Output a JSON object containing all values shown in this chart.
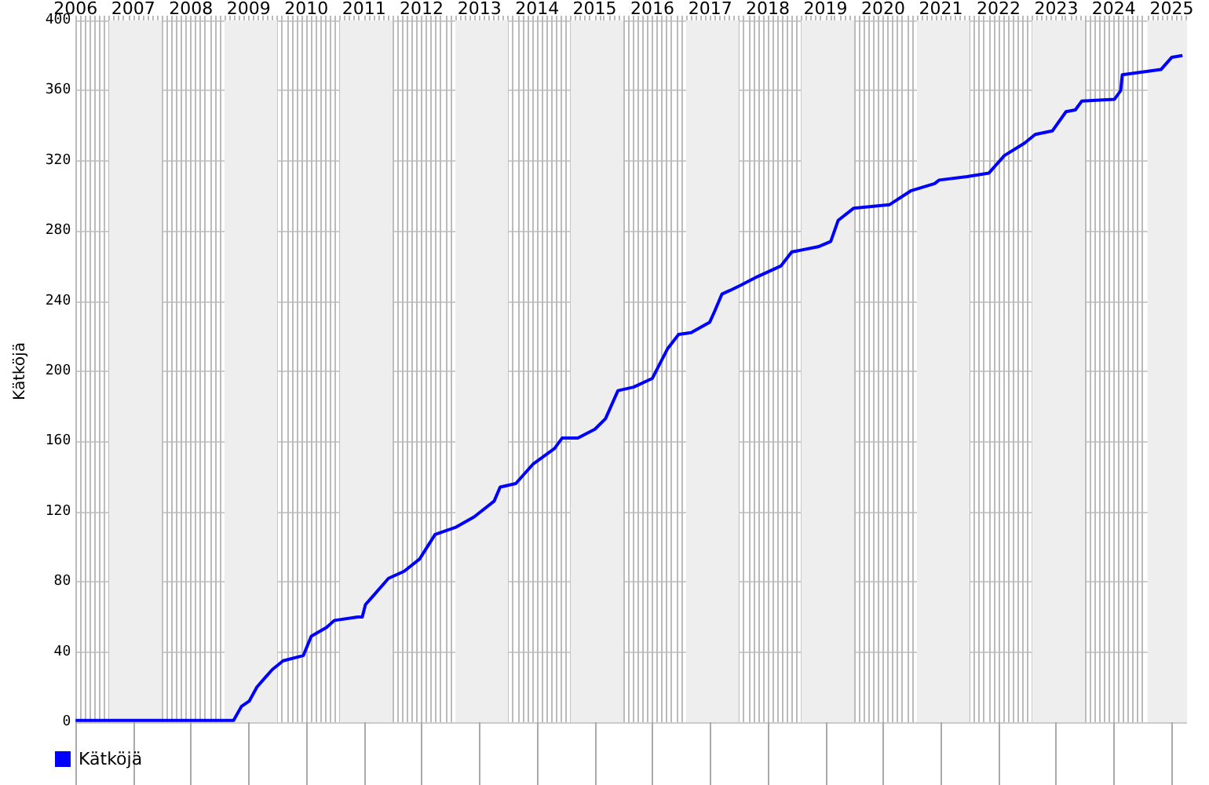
{
  "chart_data": {
    "type": "line",
    "ylabel": "Kätköjä",
    "legend": "bottom left",
    "grid": true,
    "x": [
      "2006-01-01",
      "2008-09-27",
      "2008-11-16",
      "2009-01-04",
      "2009-02-22",
      "2009-04-11",
      "2009-05-30",
      "2009-08-07",
      "2009-12-13",
      "2010-02-01",
      "2010-05-09",
      "2010-06-27",
      "2010-11-22",
      "2010-12-21",
      "2011-01-10",
      "2011-02-28",
      "2011-06-05",
      "2011-09-12",
      "2011-12-19",
      "2012-03-26",
      "2012-08-01",
      "2012-11-28",
      "2013-04-04",
      "2013-05-12",
      "2013-08-19",
      "2013-12-05",
      "2014-04-21",
      "2014-06-09",
      "2014-09-16",
      "2015-01-02",
      "2015-03-10",
      "2015-05-28",
      "2015-09-04",
      "2016-01-01",
      "2016-04-07",
      "2016-06-15",
      "2016-09-02",
      "2016-12-29",
      "2017-01-28",
      "2017-03-16",
      "2017-05-04",
      "2017-07-12",
      "2017-10-28",
      "2018-03-24",
      "2018-06-01",
      "2018-11-16",
      "2019-02-03",
      "2019-03-22",
      "2019-06-29",
      "2020-02-11",
      "2020-06-27",
      "2020-11-22",
      "2020-12-21",
      "2021-06-15",
      "2021-11-01",
      "2022-02-07",
      "2022-06-13",
      "2022-08-21",
      "2022-12-07",
      "2023-03-04",
      "2023-05-02",
      "2023-06-11",
      "2024-01-04",
      "2024-02-13",
      "2024-02-23",
      "2024-10-25",
      "2025-01-02",
      "2025-03-10"
    ],
    "series": [
      {
        "name": "Kätköjä",
        "color": "#0000ff",
        "values": [
          1,
          1,
          9,
          12,
          20,
          25,
          30,
          35,
          38,
          49,
          54,
          58,
          60,
          60,
          67,
          72,
          82,
          86,
          93,
          107,
          111,
          117,
          126,
          134,
          136,
          147,
          156,
          162,
          162,
          167,
          173,
          189,
          191,
          196,
          213,
          221,
          222,
          228,
          234,
          244,
          246,
          249,
          254,
          260,
          268,
          271,
          274,
          286,
          293,
          295,
          303,
          307,
          309,
          311,
          313,
          323,
          330,
          335,
          337,
          348,
          349,
          354,
          355,
          360,
          369,
          372,
          379,
          380
        ]
      }
    ],
    "xlim": [
      "2006-01-01",
      "2025-04-08"
    ],
    "xticks": [
      {
        "value": "2006",
        "label": "2006"
      },
      {
        "value": "2007",
        "label": "2007"
      },
      {
        "value": "2008",
        "label": "2008"
      },
      {
        "value": "2009",
        "label": "2009"
      },
      {
        "value": "2010",
        "label": "2010"
      },
      {
        "value": "2011",
        "label": "2011"
      },
      {
        "value": "2012",
        "label": "2012"
      },
      {
        "value": "2013",
        "label": "2013"
      },
      {
        "value": "2014",
        "label": "2014"
      },
      {
        "value": "2015",
        "label": "2015"
      },
      {
        "value": "2016",
        "label": "2016"
      },
      {
        "value": "2017",
        "label": "2017"
      },
      {
        "value": "2018",
        "label": "2018"
      },
      {
        "value": "2019",
        "label": "2019"
      },
      {
        "value": "2020",
        "label": "2020"
      },
      {
        "value": "2021",
        "label": "2021"
      },
      {
        "value": "2022",
        "label": "2022"
      },
      {
        "value": "2023",
        "label": "2023"
      },
      {
        "value": "2024",
        "label": "2024"
      },
      {
        "value": "2025",
        "label": "2025"
      }
    ],
    "ylim": [
      0,
      400
    ],
    "yticks": [
      0,
      40,
      80,
      120,
      160,
      200,
      240,
      280,
      320,
      360,
      400
    ],
    "bands": [
      {
        "axis": "x",
        "from": "2006-08",
        "to": "2007-07",
        "color": "#eeeeee"
      },
      {
        "axis": "x",
        "from": "2008-08",
        "to": "2009-07",
        "color": "#eeeeee"
      },
      {
        "axis": "x",
        "from": "2010-08",
        "to": "2011-07",
        "color": "#eeeeee"
      },
      {
        "axis": "x",
        "from": "2012-08",
        "to": "2013-07",
        "color": "#eeeeee"
      },
      {
        "axis": "x",
        "from": "2014-08",
        "to": "2015-07",
        "color": "#eeeeee"
      },
      {
        "axis": "x",
        "from": "2016-08",
        "to": "2017-07",
        "color": "#eeeeee"
      },
      {
        "axis": "x",
        "from": "2018-08",
        "to": "2019-07",
        "color": "#eeeeee"
      },
      {
        "axis": "x",
        "from": "2020-08",
        "to": "2021-07",
        "color": "#eeeeee"
      },
      {
        "axis": "x",
        "from": "2022-08",
        "to": "2023-07",
        "color": "#eeeeee"
      },
      {
        "axis": "x",
        "from": "2024-08",
        "to": "2025-04-08",
        "color": "#eeeeee"
      }
    ]
  }
}
